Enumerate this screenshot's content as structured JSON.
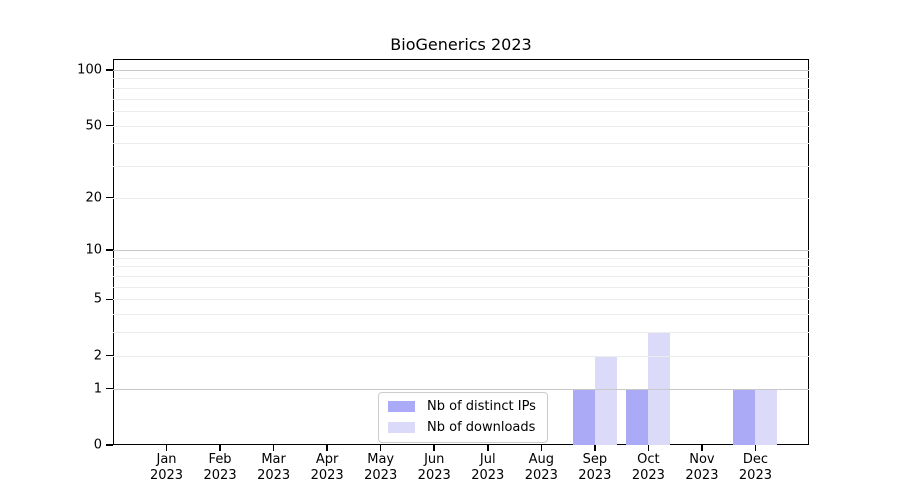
{
  "title": "BioGenerics 2023",
  "chart_data": {
    "type": "bar",
    "title": "BioGenerics 2023",
    "categories": [
      "Jan 2023",
      "Feb 2023",
      "Mar 2023",
      "Apr 2023",
      "May 2023",
      "Jun 2023",
      "Jul 2023",
      "Aug 2023",
      "Sep 2023",
      "Oct 2023",
      "Nov 2023",
      "Dec 2023"
    ],
    "series": [
      {
        "name": "Nb of distinct IPs",
        "color": "#aaaaf6",
        "values": [
          0,
          0,
          0,
          0,
          0,
          0,
          0,
          0,
          1,
          1,
          0,
          1
        ]
      },
      {
        "name": "Nb of downloads",
        "color": "#dbdbf9",
        "values": [
          0,
          0,
          0,
          0,
          0,
          0,
          0,
          0,
          2,
          3,
          0,
          1
        ]
      }
    ],
    "xlabel": "",
    "ylabel": "",
    "y_axis": {
      "scale": "log10(1+x)",
      "tick_values": [
        0,
        1,
        2,
        5,
        10,
        20,
        50,
        100
      ],
      "tick_labels": [
        "0",
        "1",
        "2",
        "5",
        "10",
        "20",
        "50",
        "100"
      ],
      "range": [
        0,
        110
      ],
      "major_gridline_values": [
        1,
        10,
        100
      ],
      "minor_gridline_values": [
        2,
        3,
        4,
        5,
        6,
        7,
        8,
        9,
        20,
        30,
        40,
        50,
        60,
        70,
        80,
        90
      ]
    },
    "grid": "horizontal",
    "legend_position": "inside-bottom-center"
  },
  "legend": {
    "items": [
      {
        "label": "Nb of distinct IPs",
        "color": "#aaaaf6"
      },
      {
        "label": "Nb of downloads",
        "color": "#dbdbf9"
      }
    ]
  },
  "colors": {
    "background": "#ffffff",
    "spine": "#000000",
    "major_grid": "#c8c8c8",
    "minor_grid": "#ececec",
    "text": "#000000",
    "legend_border": "#cccccc"
  }
}
